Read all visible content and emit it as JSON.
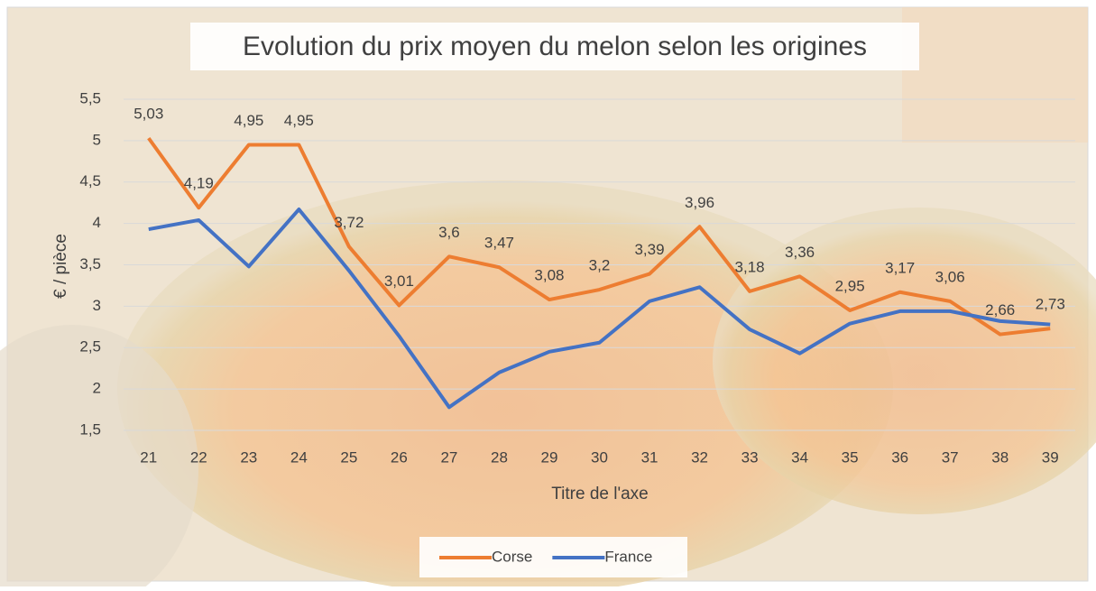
{
  "chart_data": {
    "type": "line",
    "title": "Evolution du prix moyen du melon selon les origines",
    "x_label": "Titre de l'axe",
    "y_label": "€ / pièce",
    "categories": [
      "21",
      "22",
      "23",
      "24",
      "25",
      "26",
      "27",
      "28",
      "29",
      "30",
      "31",
      "32",
      "33",
      "34",
      "35",
      "36",
      "37",
      "38",
      "39"
    ],
    "series": [
      {
        "name": "Corse",
        "color": "#ed7d31",
        "values": [
          5.03,
          4.19,
          4.95,
          4.95,
          3.72,
          3.01,
          3.6,
          3.47,
          3.08,
          3.2,
          3.39,
          3.96,
          3.18,
          3.36,
          2.95,
          3.17,
          3.06,
          2.66,
          2.73
        ],
        "value_labels": [
          "5,03",
          "4,19",
          "4,95",
          "4,95",
          "3,72",
          "3,01",
          "3,6",
          "3,47",
          "3,08",
          "3,2",
          "3,39",
          "3,96",
          "3,18",
          "3,36",
          "2,95",
          "3,17",
          "3,06",
          "2,66",
          "2,73"
        ]
      },
      {
        "name": "France",
        "color": "#4472c4",
        "values": [
          3.93,
          4.04,
          3.48,
          4.17,
          3.43,
          2.64,
          1.78,
          2.2,
          2.45,
          2.56,
          3.06,
          3.23,
          2.72,
          2.43,
          2.79,
          2.94,
          2.94,
          2.82,
          2.78
        ]
      }
    ],
    "ylim": [
      1.5,
      5.5
    ],
    "yticks": [
      {
        "value": 1.5,
        "label": "1,5"
      },
      2,
      {
        "value": 2.5,
        "label": "2,5"
      },
      3,
      {
        "value": 3.5,
        "label": "3,5"
      },
      4,
      {
        "value": 4.5,
        "label": "4,5"
      },
      5,
      {
        "value": 5.5,
        "label": "5,5"
      }
    ],
    "grid": true,
    "legend": "bottom"
  }
}
